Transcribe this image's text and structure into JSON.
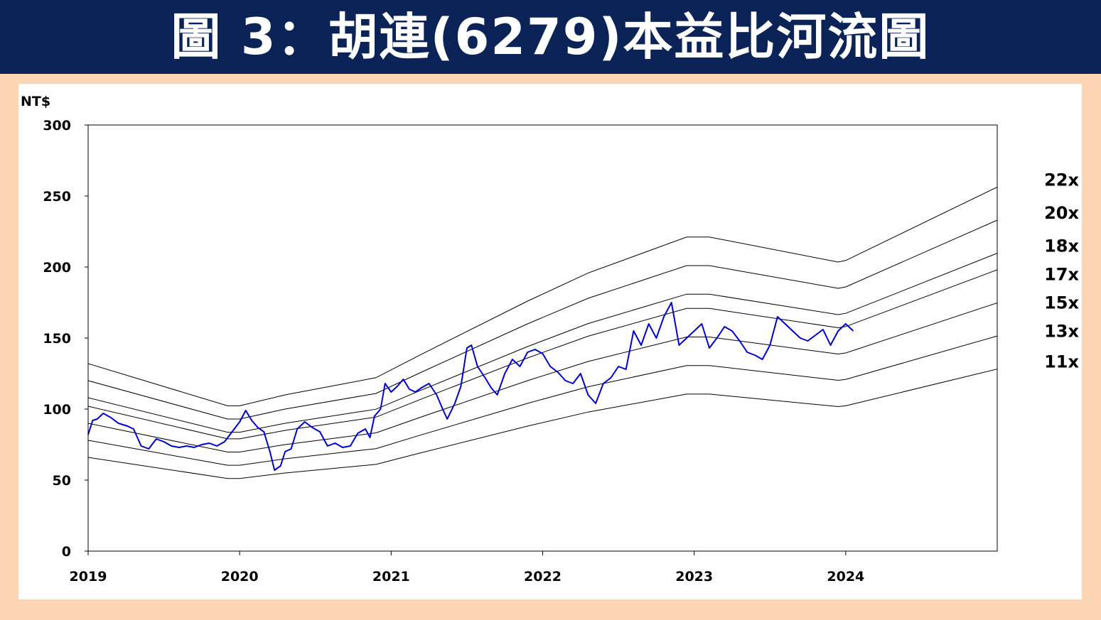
{
  "title": "圖 3：胡連(6279)本益比河流圖",
  "chart_data": {
    "type": "line",
    "title": "圖 3：胡連(6279)本益比河流圖",
    "unit": "NT$",
    "ylim": [
      0,
      300
    ],
    "y_ticks": [
      "0",
      "50",
      "100",
      "150",
      "200",
      "250",
      "300"
    ],
    "xlim": [
      "2019-01-01",
      "2024-12-31"
    ],
    "x_ticks": [
      "2019",
      "2020",
      "2021",
      "2022",
      "2023",
      "2024"
    ],
    "grid": false,
    "colors": {
      "price": "#0000cc",
      "bands": "#000000"
    },
    "pe_bands": [
      {
        "label": "22x",
        "multiple": 22
      },
      {
        "label": "20x",
        "multiple": 20
      },
      {
        "label": "18x",
        "multiple": 18
      },
      {
        "label": "17x",
        "multiple": 17
      },
      {
        "label": "15x",
        "multiple": 15
      },
      {
        "label": "13x",
        "multiple": 13
      },
      {
        "label": "11x",
        "multiple": 11
      }
    ],
    "eps_trailing": {
      "x": [
        2019.0,
        2019.92,
        2020.0,
        2020.3,
        2020.9,
        2021.2,
        2021.9,
        2022.3,
        2022.95,
        2023.1,
        2023.95,
        2024.0,
        2025.0
      ],
      "values": [
        6.0,
        4.65,
        4.65,
        5.0,
        5.55,
        6.3,
        8.0,
        8.9,
        10.05,
        10.05,
        9.25,
        9.3,
        11.65
      ]
    },
    "price_series": {
      "x": [
        2019.0,
        2019.03,
        2019.06,
        2019.1,
        2019.15,
        2019.2,
        2019.26,
        2019.3,
        2019.35,
        2019.4,
        2019.45,
        2019.5,
        2019.55,
        2019.6,
        2019.65,
        2019.7,
        2019.75,
        2019.8,
        2019.85,
        2019.9,
        2019.95,
        2020.0,
        2020.04,
        2020.08,
        2020.12,
        2020.16,
        2020.2,
        2020.23,
        2020.27,
        2020.3,
        2020.34,
        2020.38,
        2020.43,
        2020.48,
        2020.53,
        2020.58,
        2020.63,
        2020.68,
        2020.73,
        2020.78,
        2020.83,
        2020.86,
        2020.89,
        2020.93,
        2020.96,
        2021.0,
        2021.04,
        2021.08,
        2021.12,
        2021.16,
        2021.2,
        2021.25,
        2021.3,
        2021.34,
        2021.37,
        2021.42,
        2021.46,
        2021.5,
        2021.53,
        2021.57,
        2021.62,
        2021.66,
        2021.7,
        2021.75,
        2021.8,
        2021.85,
        2021.9,
        2021.95,
        2022.0,
        2022.05,
        2022.1,
        2022.15,
        2022.2,
        2022.25,
        2022.3,
        2022.35,
        2022.4,
        2022.45,
        2022.5,
        2022.55,
        2022.6,
        2022.65,
        2022.7,
        2022.75,
        2022.8,
        2022.85,
        2022.9,
        2022.95,
        2023.0,
        2023.05,
        2023.1,
        2023.15,
        2023.2,
        2023.25,
        2023.3,
        2023.35,
        2023.4,
        2023.45,
        2023.5,
        2023.55,
        2023.6,
        2023.65,
        2023.7,
        2023.75,
        2023.8,
        2023.85,
        2023.9,
        2023.95,
        2024.0,
        2024.05
      ],
      "values": [
        82,
        92,
        93,
        97,
        94,
        90,
        88,
        86,
        74,
        72,
        79,
        77,
        74,
        73,
        74,
        73,
        75,
        76,
        74,
        77,
        84,
        91,
        99,
        92,
        87,
        84,
        70,
        57,
        60,
        70,
        72,
        86,
        91,
        87,
        84,
        74,
        76,
        73,
        74,
        83,
        86,
        80,
        95,
        100,
        118,
        112,
        116,
        121,
        114,
        112,
        115,
        118,
        110,
        100,
        93,
        104,
        116,
        143,
        145,
        130,
        122,
        115,
        110,
        125,
        135,
        130,
        140,
        142,
        139,
        130,
        126,
        120,
        118,
        125,
        110,
        104,
        118,
        122,
        130,
        128,
        155,
        145,
        160,
        150,
        165,
        175,
        145,
        150,
        155,
        160,
        143,
        150,
        158,
        155,
        148,
        140,
        138,
        135,
        145,
        165,
        160,
        155,
        150,
        148,
        152,
        156,
        145,
        155,
        160,
        155
      ]
    }
  }
}
